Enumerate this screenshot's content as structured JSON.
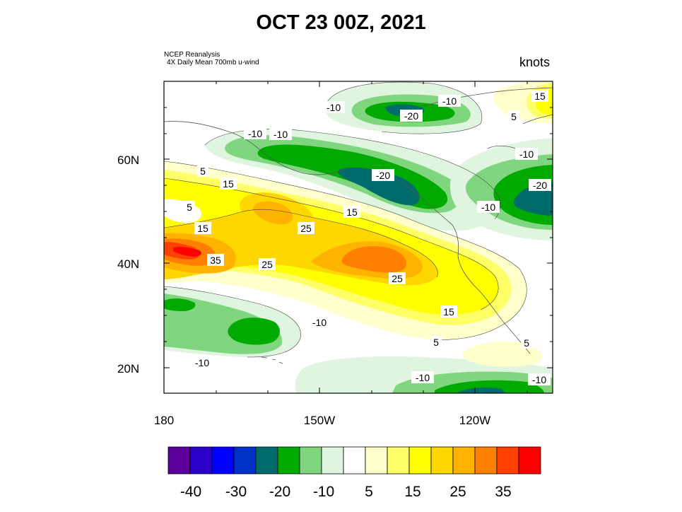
{
  "title": "OCT 23 00Z, 2021",
  "source_line1": "NCEP Reanalysis",
  "source_line2": "4X Daily Mean 700mb u-wind",
  "units": "knots",
  "axes": {
    "lat_ticks": [
      "60N",
      "40N",
      "20N"
    ],
    "lon_ticks": [
      "180",
      "150W",
      "120W"
    ]
  },
  "colorbar": {
    "colors": [
      "#5a0099",
      "#2a00c6",
      "#0000ff",
      "#0032c8",
      "#006b6b",
      "#00aa00",
      "#7fd67f",
      "#dff5df",
      "#ffffff",
      "#ffffcc",
      "#ffff66",
      "#ffff00",
      "#ffd700",
      "#ffb300",
      "#ff8000",
      "#ff4000",
      "#ff0000"
    ],
    "labels": [
      "-40",
      "-30",
      "-20",
      "-10",
      "5",
      "15",
      "25",
      "35"
    ]
  },
  "contour_labels": [
    {
      "text": "-10"
    },
    {
      "text": "-20"
    },
    {
      "text": "-10"
    },
    {
      "text": "15"
    },
    {
      "text": "5"
    },
    {
      "text": "-10"
    },
    {
      "text": "-10"
    },
    {
      "text": "-10"
    },
    {
      "text": "5"
    },
    {
      "text": "15"
    },
    {
      "text": "-20"
    },
    {
      "text": "-20"
    },
    {
      "text": "5"
    },
    {
      "text": "15"
    },
    {
      "text": "-10"
    },
    {
      "text": "25"
    },
    {
      "text": "15"
    },
    {
      "text": "35"
    },
    {
      "text": "25"
    },
    {
      "text": "25"
    },
    {
      "text": "15"
    },
    {
      "text": "-10"
    },
    {
      "text": "5"
    },
    {
      "text": "5"
    },
    {
      "text": "-10"
    },
    {
      "text": "-10"
    },
    {
      "text": "-10"
    }
  ]
}
